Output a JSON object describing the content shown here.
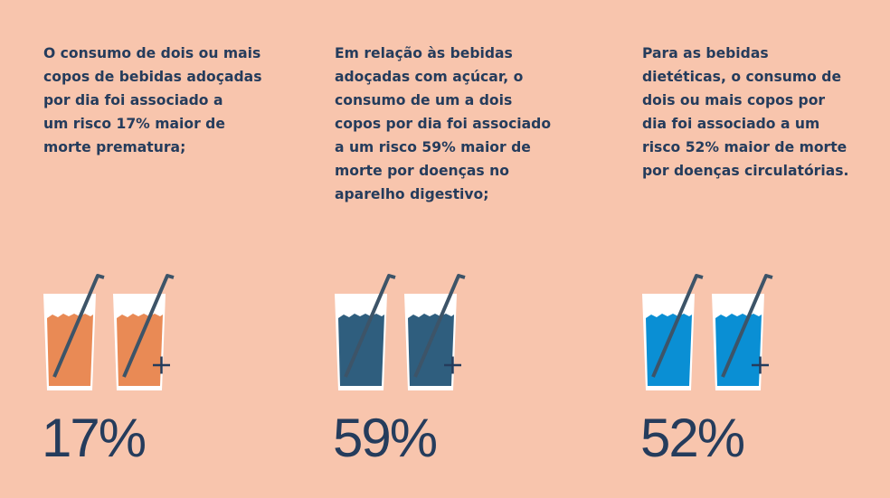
{
  "columns": [
    {
      "text": "O consumo de dois ou mais\ncopos de bebidas adoçadas\npor dia foi associado a\num risco 17% maior de\nmorte prematura;",
      "percent": "17%",
      "liquid_color": "#e98a55",
      "liquid_icon": "orange-drink-glass-icon"
    },
    {
      "text": "Em relação às bebidas\nadoçadas com açúcar, o\nconsumo de um a dois\ncopos por dia foi associado\na um risco 59% maior de\nmorte por doenças no\naparelho digestivo;",
      "percent": "59%",
      "liquid_color": "#2f5e7e",
      "liquid_icon": "dark-blue-drink-glass-icon"
    },
    {
      "text": "Para as bebidas\ndietéticas, o consumo de\ndois ou mais copos por\ndia foi associado a um\nrisco 52% maior de morte\npor doenças circulatórias.",
      "percent": "52%",
      "liquid_color": "#0a8fd4",
      "liquid_icon": "blue-drink-glass-icon"
    }
  ],
  "colors": {
    "background": "#f8c5ad",
    "text": "#253c5c",
    "straw": "#3d5468",
    "glass": "#ffffff"
  },
  "plus_icon": "plus-icon"
}
